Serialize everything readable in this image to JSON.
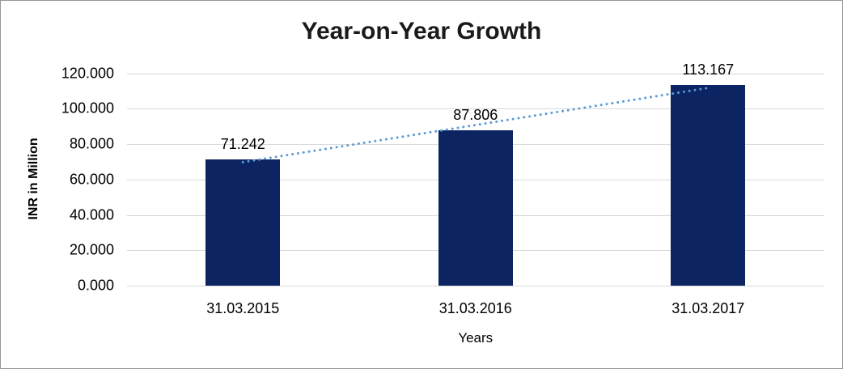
{
  "chart_data": {
    "type": "bar",
    "title": "Year-on-Year Growth",
    "xlabel": "Years",
    "ylabel": "INR in Million",
    "categories": [
      "31.03.2015",
      "31.03.2016",
      "31.03.2017"
    ],
    "values": [
      71.242,
      87.806,
      113.167
    ],
    "data_labels": [
      "71.242",
      "87.806",
      "113.167"
    ],
    "y_ticks": [
      "0.000",
      "20.000",
      "40.000",
      "60.000",
      "80.000",
      "100.000",
      "120.000"
    ],
    "ylim": [
      0,
      120
    ],
    "grid": "horizontal",
    "legend": "none",
    "trendline": {
      "type": "linear",
      "style": "dotted"
    },
    "colors": {
      "bar_fill": "#0c2461",
      "trendline": "#5b9bd5",
      "gridline": "#d9d9d9",
      "text": "#000000",
      "title": "#1a1a1a",
      "border": "#979797",
      "background": "#ffffff"
    }
  }
}
